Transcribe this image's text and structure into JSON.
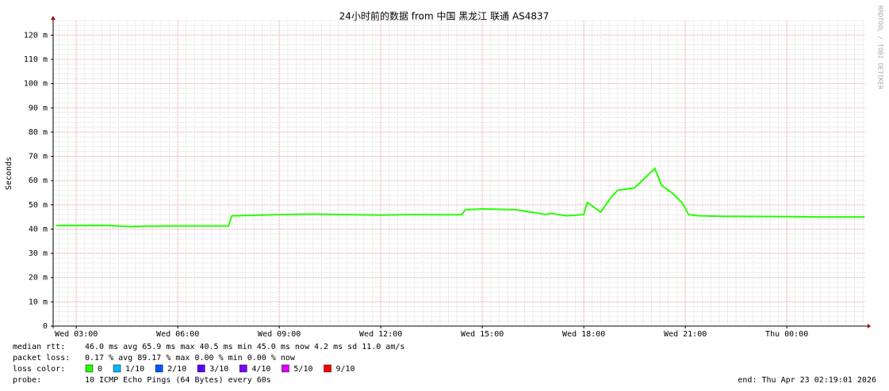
{
  "chart_data": {
    "type": "line",
    "title": "24小时前的数据 from  中国 黑龙江 联通 AS4837",
    "y_label": "Seconds",
    "watermark": "RRDTOOL / TOBI OETIKER",
    "x": [
      2.4,
      3,
      4,
      4.6,
      5,
      6,
      7,
      7.5,
      7.6,
      8,
      9,
      10,
      11,
      12,
      13,
      14,
      14.4,
      14.5,
      15,
      16,
      16.9,
      17,
      17.5,
      18,
      18.1,
      18.5,
      18.8,
      19,
      19.5,
      19.8,
      20.1,
      20.3,
      20.6,
      20.9,
      21.1,
      21.4,
      22,
      23,
      24,
      25,
      26,
      26.3
    ],
    "series": [
      {
        "name": "median rtt:",
        "color": "#26ff00",
        "values": [
          41.5,
          41.5,
          41.5,
          41,
          41.2,
          41.3,
          41.3,
          41.3,
          45.5,
          45.6,
          46,
          46.2,
          46,
          45.8,
          46,
          45.9,
          46,
          48,
          48.3,
          48,
          46,
          46.5,
          45.5,
          46,
          51,
          47,
          53,
          56,
          57,
          61,
          65,
          58,
          55,
          51,
          46,
          45.5,
          45.3,
          45.2,
          45.1,
          45,
          45,
          45
        ]
      }
    ],
    "xlim": [
      2.3169,
      26.3169
    ],
    "xticks": [
      {
        "value": 3,
        "label": "Wed 03:00"
      },
      {
        "value": 6,
        "label": "Wed 06:00"
      },
      {
        "value": 9,
        "label": "Wed 09:00"
      },
      {
        "value": 12,
        "label": "Wed 12:00"
      },
      {
        "value": 15,
        "label": "Wed 15:00"
      },
      {
        "value": 18,
        "label": "Wed 18:00"
      },
      {
        "value": 21,
        "label": "Wed 21:00"
      },
      {
        "value": 24,
        "label": "Thu 00:00"
      }
    ],
    "ylim": [
      0,
      126
    ],
    "yticks": [
      0,
      {
        "value": 10,
        "label": "10 m"
      },
      {
        "value": 20,
        "label": "20 m"
      },
      {
        "value": 30,
        "label": "30 m"
      },
      {
        "value": 40,
        "label": "40 m"
      },
      {
        "value": 50,
        "label": "50 m"
      },
      {
        "value": 60,
        "label": "60 m"
      },
      {
        "value": 70,
        "label": "70 m"
      },
      {
        "value": 80,
        "label": "80 m"
      },
      {
        "value": 90,
        "label": "90 m"
      },
      {
        "value": 100,
        "label": "100 m"
      },
      {
        "value": 110,
        "label": "110 m"
      },
      {
        "value": 120,
        "label": "120 m"
      }
    ],
    "grid": true,
    "stats": [
      {
        "label": "median rtt:",
        "text": "46.0 ms avg  65.9 ms max  40.5 ms min  45.0 ms now  4.2 ms sd  11.0   am/s"
      },
      {
        "label": "packet loss:",
        "text": "0.17 % avg  89.17 % max  0.00 % min  0.00 % now"
      }
    ],
    "loss_color_label": "loss color:",
    "loss_colors": [
      {
        "label": "0",
        "color": "#26ff00"
      },
      {
        "label": "1/10",
        "color": "#00b8ff"
      },
      {
        "label": "2/10",
        "color": "#0059ff"
      },
      {
        "label": "3/10",
        "color": "#5e00ff"
      },
      {
        "label": "4/10",
        "color": "#7e00ff"
      },
      {
        "label": "5/10",
        "color": "#dd00ff"
      },
      {
        "label": "9/10",
        "color": "#ff0000"
      }
    ],
    "probe_label": "probe:",
    "probe": "10 ICMP Echo Pings (64 Bytes) every 60s",
    "end": "end: Thu Apr 23 02:19:01 2026"
  }
}
